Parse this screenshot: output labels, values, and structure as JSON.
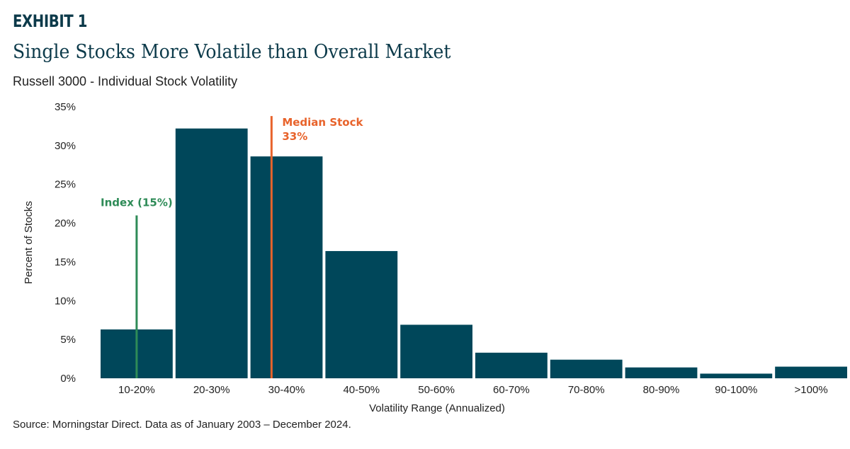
{
  "header": {
    "exhibit": "EXHIBIT 1",
    "title": "Single Stocks More Volatile than Overall Market",
    "subtitle": "Russell 3000 - Individual Stock Volatility",
    "source": "Source: Morningstar Direct. Data as of January 2003 – December 2024."
  },
  "colors": {
    "bar": "#00475a",
    "index_line": "#2e8b57",
    "median_line": "#e8632b",
    "text": "#222222",
    "title": "#0c3a4a"
  },
  "chart_data": {
    "type": "bar",
    "categories": [
      "10-20%",
      "20-30%",
      "30-40%",
      "40-50%",
      "50-60%",
      "60-70%",
      "70-80%",
      "80-90%",
      "90-100%",
      ">100%"
    ],
    "values": [
      6.3,
      32.2,
      28.6,
      16.4,
      6.9,
      3.3,
      2.4,
      1.4,
      0.6,
      1.5
    ],
    "xlabel": "Volatility Range (Annualized)",
    "ylabel": "Percent of Stocks",
    "ylim": [
      0,
      35
    ],
    "yticks": [
      "0%",
      "5%",
      "10%",
      "15%",
      "20%",
      "25%",
      "30%",
      "35%"
    ],
    "grid": false,
    "annotations": [
      {
        "name": "index",
        "label": "Index (15%)",
        "x": 15,
        "y_top": 21
      },
      {
        "name": "median",
        "label_line1": "Median Stock",
        "label_line2": "33%",
        "x": 33,
        "y_top": 33.8
      }
    ]
  }
}
